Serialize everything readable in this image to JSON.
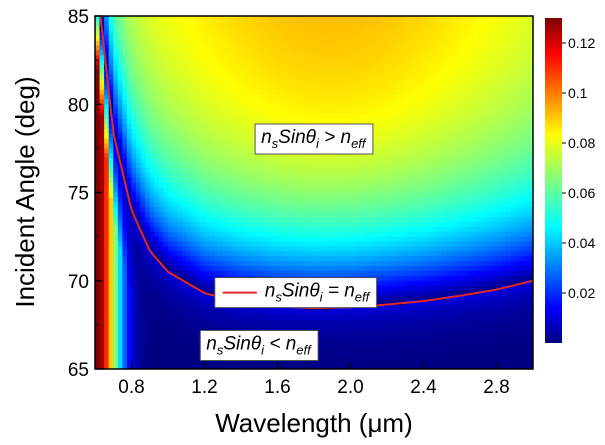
{
  "chart_data": {
    "type": "heatmap",
    "xlabel_main": "Wavelength (",
    "xlabel_unit": "μm",
    "xlabel_close": ")",
    "ylabel": "Incident Angle (deg)",
    "xlim": [
      0.6,
      3.0
    ],
    "ylim": [
      65,
      85
    ],
    "x_ticks": [
      0.8,
      1.2,
      1.6,
      2.0,
      2.4,
      2.8
    ],
    "x_tick_labels": [
      "0.8",
      "1.2",
      "1.6",
      "2.0",
      "2.4",
      "2.8"
    ],
    "y_ticks": [
      65,
      70,
      75,
      80,
      85
    ],
    "y_tick_labels": [
      "65",
      "70",
      "75",
      "80",
      "85"
    ],
    "colorbar": {
      "colormap": "jet",
      "range": [
        0,
        0.13
      ],
      "ticks": [
        0.02,
        0.04,
        0.06,
        0.08,
        0.1,
        0.12
      ],
      "tick_labels": [
        "0.02",
        "0.04",
        "0.06",
        "0.08",
        "0.1",
        "0.12"
      ]
    },
    "resonance_curve": {
      "color": "#e3262a",
      "x": [
        0.63,
        0.7,
        0.8,
        0.9,
        1.0,
        1.2,
        1.4,
        1.6,
        1.8,
        2.0,
        2.2,
        2.4,
        2.6,
        2.8,
        3.0
      ],
      "y": [
        85.0,
        78.4,
        74.0,
        71.7,
        70.5,
        69.3,
        68.8,
        68.55,
        68.45,
        68.5,
        68.65,
        68.85,
        69.15,
        69.5,
        70.0
      ]
    },
    "annotations": [
      {
        "id": "above",
        "n": "n",
        "s": "s",
        "sin": "Sin",
        "theta": "θ",
        "i": "i",
        "op": ">",
        "n2": "n",
        "eff": "eff",
        "x": 1.8,
        "y": 78.2
      },
      {
        "id": "equal",
        "n": "n",
        "s": "s",
        "sin": "Sin",
        "theta": "θ",
        "i": "i",
        "op": "=",
        "n2": "n",
        "eff": "eff",
        "x": 1.7,
        "y": 69.5
      },
      {
        "id": "below",
        "n": "n",
        "s": "s",
        "sin": "Sin",
        "theta": "θ",
        "i": "i",
        "op": "<",
        "n2": "n",
        "eff": "eff",
        "x": 1.5,
        "y": 66.5
      }
    ]
  }
}
